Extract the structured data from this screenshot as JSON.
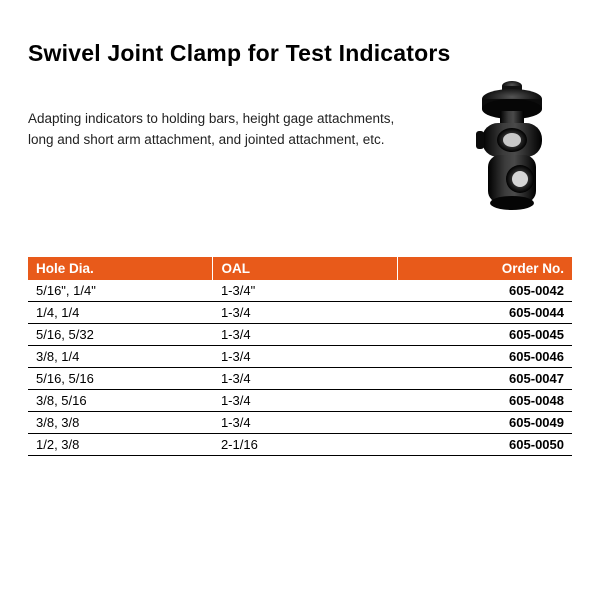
{
  "title": "Swivel Joint Clamp for Test Indicators",
  "description": "Adapting indicators to holding bars, height gage attachments, long and short arm attachment, and jointed attachment, etc.",
  "illustration": {
    "body_color": "#1a1a1a",
    "highlight_color": "#555555",
    "shadow_color": "#000000"
  },
  "table": {
    "header_bg": "#e85a1a",
    "header_fg": "#ffffff",
    "columns": [
      "Hole Dia.",
      "OAL",
      "Order No."
    ],
    "rows": [
      {
        "hole": "5/16\", 1/4\"",
        "oal": "1-3/4\"",
        "order": "605-0042"
      },
      {
        "hole": "1/4, 1/4",
        "oal": "1-3/4",
        "order": "605-0044"
      },
      {
        "hole": "5/16, 5/32",
        "oal": "1-3/4",
        "order": "605-0045"
      },
      {
        "hole": "3/8, 1/4",
        "oal": "1-3/4",
        "order": "605-0046"
      },
      {
        "hole": "5/16, 5/16",
        "oal": "1-3/4",
        "order": "605-0047"
      },
      {
        "hole": "3/8, 5/16",
        "oal": "1-3/4",
        "order": "605-0048"
      },
      {
        "hole": "3/8, 3/8",
        "oal": "1-3/4",
        "order": "605-0049"
      },
      {
        "hole": "1/2, 3/8",
        "oal": "2-1/16",
        "order": "605-0050"
      }
    ]
  }
}
